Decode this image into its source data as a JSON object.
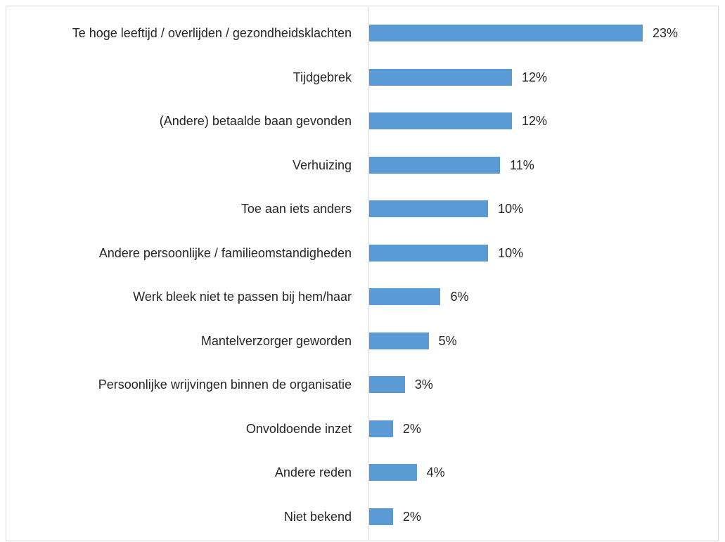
{
  "chart_data": {
    "type": "hbar",
    "color": "#5b9bd5",
    "categories": [
      "Te hoge leeftijd / overlijden / gezondheidsklachten",
      "Tijdgebrek",
      "(Andere) betaalde baan gevonden",
      "Verhuizing",
      "Toe aan iets anders",
      "Andere persoonlijke / familieomstandigheden",
      "Werk bleek niet te passen bij hem/haar",
      "Mantelverzorger geworden",
      "Persoonlijke wrijvingen binnen de organisatie",
      "Onvoldoende inzet",
      "Andere reden",
      "Niet bekend"
    ],
    "values": [
      23,
      12,
      12,
      11,
      10,
      10,
      6,
      5,
      3,
      2,
      4,
      2
    ],
    "value_labels": [
      "23%",
      "12%",
      "12%",
      "11%",
      "10%",
      "10%",
      "6%",
      "5%",
      "3%",
      "2%",
      "4%",
      "2%"
    ]
  }
}
